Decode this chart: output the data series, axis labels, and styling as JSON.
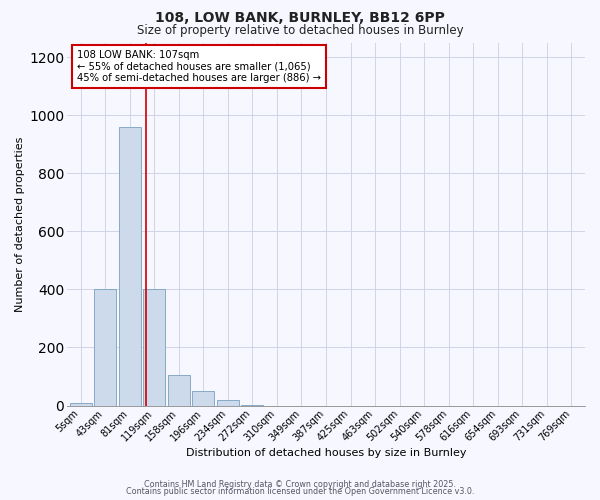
{
  "title1": "108, LOW BANK, BURNLEY, BB12 6PP",
  "title2": "Size of property relative to detached houses in Burnley",
  "xlabel": "Distribution of detached houses by size in Burnley",
  "ylabel": "Number of detached properties",
  "bar_labels": [
    "5sqm",
    "43sqm",
    "81sqm",
    "119sqm",
    "158sqm",
    "196sqm",
    "234sqm",
    "272sqm",
    "310sqm",
    "349sqm",
    "387sqm",
    "425sqm",
    "463sqm",
    "502sqm",
    "540sqm",
    "578sqm",
    "616sqm",
    "654sqm",
    "693sqm",
    "731sqm",
    "769sqm"
  ],
  "bar_values": [
    10,
    400,
    960,
    400,
    105,
    50,
    18,
    2,
    0,
    0,
    0,
    0,
    0,
    0,
    0,
    0,
    0,
    0,
    0,
    0,
    0
  ],
  "bar_color": "#ccdaeb",
  "bar_edge_color": "#7aa0c0",
  "background_color": "#f7f8ff",
  "grid_color": "#d0d4e8",
  "ylim": [
    0,
    1250
  ],
  "yticks": [
    0,
    200,
    400,
    600,
    800,
    1000,
    1200
  ],
  "annotation_title": "108 LOW BANK: 107sqm",
  "annotation_line1": "← 55% of detached houses are smaller (1,065)",
  "annotation_line2": "45% of semi-detached houses are larger (886) →",
  "vline_color": "#cc0000",
  "footer1": "Contains HM Land Registry data © Crown copyright and database right 2025.",
  "footer2": "Contains public sector information licensed under the Open Government Licence v3.0."
}
